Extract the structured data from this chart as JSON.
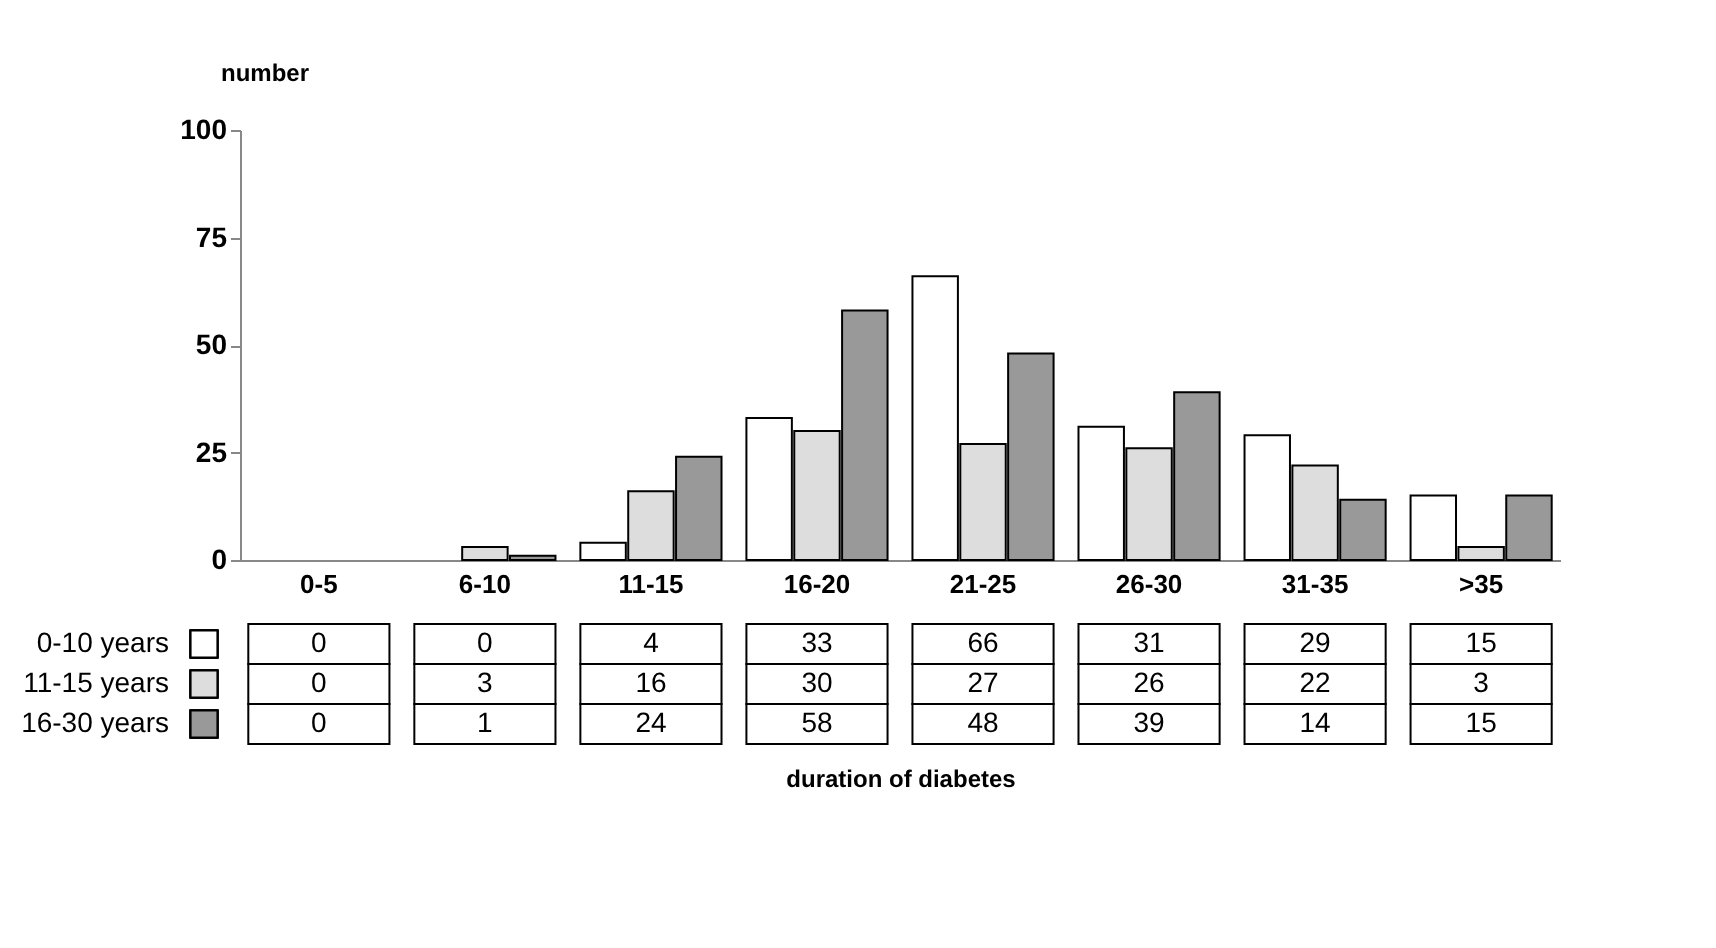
{
  "chart_data": {
    "type": "bar",
    "annotations": [
      "duration of diabetes"
    ],
    "ylabel": "number",
    "categories": [
      "0-5",
      "6-10",
      "11-15",
      "16-20",
      "21-25",
      "26-30",
      "31-35",
      ">35"
    ],
    "series": [
      {
        "name": "0-10 years",
        "color": "#ffffff",
        "values": [
          0,
          0,
          4,
          33,
          66,
          31,
          29,
          15
        ]
      },
      {
        "name": "11-15 years",
        "color": "#dddddd",
        "values": [
          0,
          3,
          16,
          30,
          27,
          26,
          22,
          3
        ]
      },
      {
        "name": "16-30 years",
        "color": "#999999",
        "values": [
          0,
          1,
          24,
          58,
          48,
          39,
          14,
          15
        ]
      }
    ],
    "ylim": [
      0,
      100
    ],
    "yticks": [
      0,
      25,
      50,
      75,
      100
    ],
    "grid": false,
    "legend": "bottom left",
    "data_labels": true
  }
}
